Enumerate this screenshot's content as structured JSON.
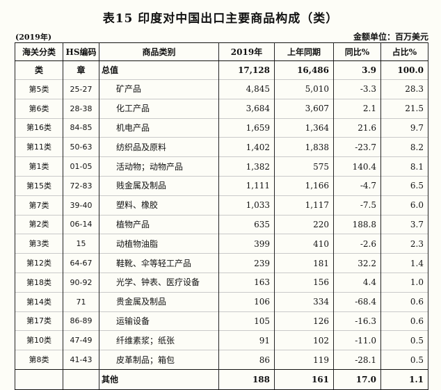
{
  "title": "表15  印度对中国出口主要商品构成（类）",
  "year_note": "(2019年)",
  "unit_note": "金额单位：百万美元",
  "headers": [
    "海关分类",
    "HS编码",
    "商品类别",
    "2019年",
    "上年同期",
    "同比%",
    "占比%"
  ],
  "total_row": {
    "cls": "类",
    "hs": "章",
    "name": "总值",
    "v2019": "17,128",
    "prev": "16,486",
    "yoy": "3.9",
    "share": "100.0"
  },
  "rows": [
    {
      "cls": "第5类",
      "hs": "25-27",
      "name": "矿产品",
      "v2019": "4,845",
      "prev": "5,010",
      "yoy": "-3.3",
      "share": "28.3"
    },
    {
      "cls": "第6类",
      "hs": "28-38",
      "name": "化工产品",
      "v2019": "3,684",
      "prev": "3,607",
      "yoy": "2.1",
      "share": "21.5"
    },
    {
      "cls": "第16类",
      "hs": "84-85",
      "name": "机电产品",
      "v2019": "1,659",
      "prev": "1,364",
      "yoy": "21.6",
      "share": "9.7"
    },
    {
      "cls": "第11类",
      "hs": "50-63",
      "name": "纺织品及原料",
      "v2019": "1,402",
      "prev": "1,838",
      "yoy": "-23.7",
      "share": "8.2"
    },
    {
      "cls": "第1类",
      "hs": "01-05",
      "name": "活动物；动物产品",
      "v2019": "1,382",
      "prev": "575",
      "yoy": "140.4",
      "share": "8.1"
    },
    {
      "cls": "第15类",
      "hs": "72-83",
      "name": "贱金属及制品",
      "v2019": "1,111",
      "prev": "1,166",
      "yoy": "-4.7",
      "share": "6.5"
    },
    {
      "cls": "第7类",
      "hs": "39-40",
      "name": "塑料、橡胶",
      "v2019": "1,033",
      "prev": "1,117",
      "yoy": "-7.5",
      "share": "6.0"
    },
    {
      "cls": "第2类",
      "hs": "06-14",
      "name": "植物产品",
      "v2019": "635",
      "prev": "220",
      "yoy": "188.8",
      "share": "3.7"
    },
    {
      "cls": "第3类",
      "hs": "15",
      "name": "动植物油脂",
      "v2019": "399",
      "prev": "410",
      "yoy": "-2.6",
      "share": "2.3"
    },
    {
      "cls": "第12类",
      "hs": "64-67",
      "name": "鞋靴、伞等轻工产品",
      "v2019": "239",
      "prev": "181",
      "yoy": "32.2",
      "share": "1.4"
    },
    {
      "cls": "第18类",
      "hs": "90-92",
      "name": "光学、钟表、医疗设备",
      "v2019": "163",
      "prev": "156",
      "yoy": "4.4",
      "share": "1.0"
    },
    {
      "cls": "第14类",
      "hs": "71",
      "name": "贵金属及制品",
      "v2019": "106",
      "prev": "334",
      "yoy": "-68.4",
      "share": "0.6"
    },
    {
      "cls": "第17类",
      "hs": "86-89",
      "name": "运输设备",
      "v2019": "105",
      "prev": "126",
      "yoy": "-16.3",
      "share": "0.6"
    },
    {
      "cls": "第10类",
      "hs": "47-49",
      "name": "纤维素浆；纸张",
      "v2019": "91",
      "prev": "102",
      "yoy": "-11.0",
      "share": "0.5"
    },
    {
      "cls": "第8类",
      "hs": "41-43",
      "name": "皮革制品；箱包",
      "v2019": "86",
      "prev": "119",
      "yoy": "-28.1",
      "share": "0.5"
    }
  ],
  "other_row": {
    "cls": "",
    "hs": "",
    "name": "其他",
    "v2019": "188",
    "prev": "161",
    "yoy": "17.0",
    "share": "1.1"
  }
}
